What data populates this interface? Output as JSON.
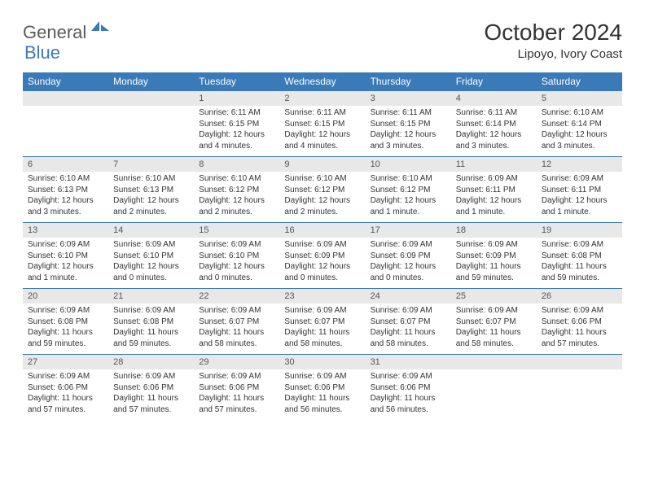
{
  "logo": {
    "general": "General",
    "blue": "Blue"
  },
  "title": "October 2024",
  "subtitle": "Lipoyo, Ivory Coast",
  "colors": {
    "header_bg": "#3a7ab8",
    "header_text": "#ffffff",
    "daynum_bg": "#e8e8e8",
    "border": "#3a7ab8"
  },
  "day_names": [
    "Sunday",
    "Monday",
    "Tuesday",
    "Wednesday",
    "Thursday",
    "Friday",
    "Saturday"
  ],
  "weeks": [
    [
      null,
      null,
      {
        "n": "1",
        "sunrise": "6:11 AM",
        "sunset": "6:15 PM",
        "daylight": "12 hours and 4 minutes."
      },
      {
        "n": "2",
        "sunrise": "6:11 AM",
        "sunset": "6:15 PM",
        "daylight": "12 hours and 4 minutes."
      },
      {
        "n": "3",
        "sunrise": "6:11 AM",
        "sunset": "6:15 PM",
        "daylight": "12 hours and 3 minutes."
      },
      {
        "n": "4",
        "sunrise": "6:11 AM",
        "sunset": "6:14 PM",
        "daylight": "12 hours and 3 minutes."
      },
      {
        "n": "5",
        "sunrise": "6:10 AM",
        "sunset": "6:14 PM",
        "daylight": "12 hours and 3 minutes."
      }
    ],
    [
      {
        "n": "6",
        "sunrise": "6:10 AM",
        "sunset": "6:13 PM",
        "daylight": "12 hours and 3 minutes."
      },
      {
        "n": "7",
        "sunrise": "6:10 AM",
        "sunset": "6:13 PM",
        "daylight": "12 hours and 2 minutes."
      },
      {
        "n": "8",
        "sunrise": "6:10 AM",
        "sunset": "6:12 PM",
        "daylight": "12 hours and 2 minutes."
      },
      {
        "n": "9",
        "sunrise": "6:10 AM",
        "sunset": "6:12 PM",
        "daylight": "12 hours and 2 minutes."
      },
      {
        "n": "10",
        "sunrise": "6:10 AM",
        "sunset": "6:12 PM",
        "daylight": "12 hours and 1 minute."
      },
      {
        "n": "11",
        "sunrise": "6:09 AM",
        "sunset": "6:11 PM",
        "daylight": "12 hours and 1 minute."
      },
      {
        "n": "12",
        "sunrise": "6:09 AM",
        "sunset": "6:11 PM",
        "daylight": "12 hours and 1 minute."
      }
    ],
    [
      {
        "n": "13",
        "sunrise": "6:09 AM",
        "sunset": "6:10 PM",
        "daylight": "12 hours and 1 minute."
      },
      {
        "n": "14",
        "sunrise": "6:09 AM",
        "sunset": "6:10 PM",
        "daylight": "12 hours and 0 minutes."
      },
      {
        "n": "15",
        "sunrise": "6:09 AM",
        "sunset": "6:10 PM",
        "daylight": "12 hours and 0 minutes."
      },
      {
        "n": "16",
        "sunrise": "6:09 AM",
        "sunset": "6:09 PM",
        "daylight": "12 hours and 0 minutes."
      },
      {
        "n": "17",
        "sunrise": "6:09 AM",
        "sunset": "6:09 PM",
        "daylight": "12 hours and 0 minutes."
      },
      {
        "n": "18",
        "sunrise": "6:09 AM",
        "sunset": "6:09 PM",
        "daylight": "11 hours and 59 minutes."
      },
      {
        "n": "19",
        "sunrise": "6:09 AM",
        "sunset": "6:08 PM",
        "daylight": "11 hours and 59 minutes."
      }
    ],
    [
      {
        "n": "20",
        "sunrise": "6:09 AM",
        "sunset": "6:08 PM",
        "daylight": "11 hours and 59 minutes."
      },
      {
        "n": "21",
        "sunrise": "6:09 AM",
        "sunset": "6:08 PM",
        "daylight": "11 hours and 59 minutes."
      },
      {
        "n": "22",
        "sunrise": "6:09 AM",
        "sunset": "6:07 PM",
        "daylight": "11 hours and 58 minutes."
      },
      {
        "n": "23",
        "sunrise": "6:09 AM",
        "sunset": "6:07 PM",
        "daylight": "11 hours and 58 minutes."
      },
      {
        "n": "24",
        "sunrise": "6:09 AM",
        "sunset": "6:07 PM",
        "daylight": "11 hours and 58 minutes."
      },
      {
        "n": "25",
        "sunrise": "6:09 AM",
        "sunset": "6:07 PM",
        "daylight": "11 hours and 58 minutes."
      },
      {
        "n": "26",
        "sunrise": "6:09 AM",
        "sunset": "6:06 PM",
        "daylight": "11 hours and 57 minutes."
      }
    ],
    [
      {
        "n": "27",
        "sunrise": "6:09 AM",
        "sunset": "6:06 PM",
        "daylight": "11 hours and 57 minutes."
      },
      {
        "n": "28",
        "sunrise": "6:09 AM",
        "sunset": "6:06 PM",
        "daylight": "11 hours and 57 minutes."
      },
      {
        "n": "29",
        "sunrise": "6:09 AM",
        "sunset": "6:06 PM",
        "daylight": "11 hours and 57 minutes."
      },
      {
        "n": "30",
        "sunrise": "6:09 AM",
        "sunset": "6:06 PM",
        "daylight": "11 hours and 56 minutes."
      },
      {
        "n": "31",
        "sunrise": "6:09 AM",
        "sunset": "6:06 PM",
        "daylight": "11 hours and 56 minutes."
      },
      null,
      null
    ]
  ],
  "labels": {
    "sunrise": "Sunrise: ",
    "sunset": "Sunset: ",
    "daylight": "Daylight: "
  }
}
